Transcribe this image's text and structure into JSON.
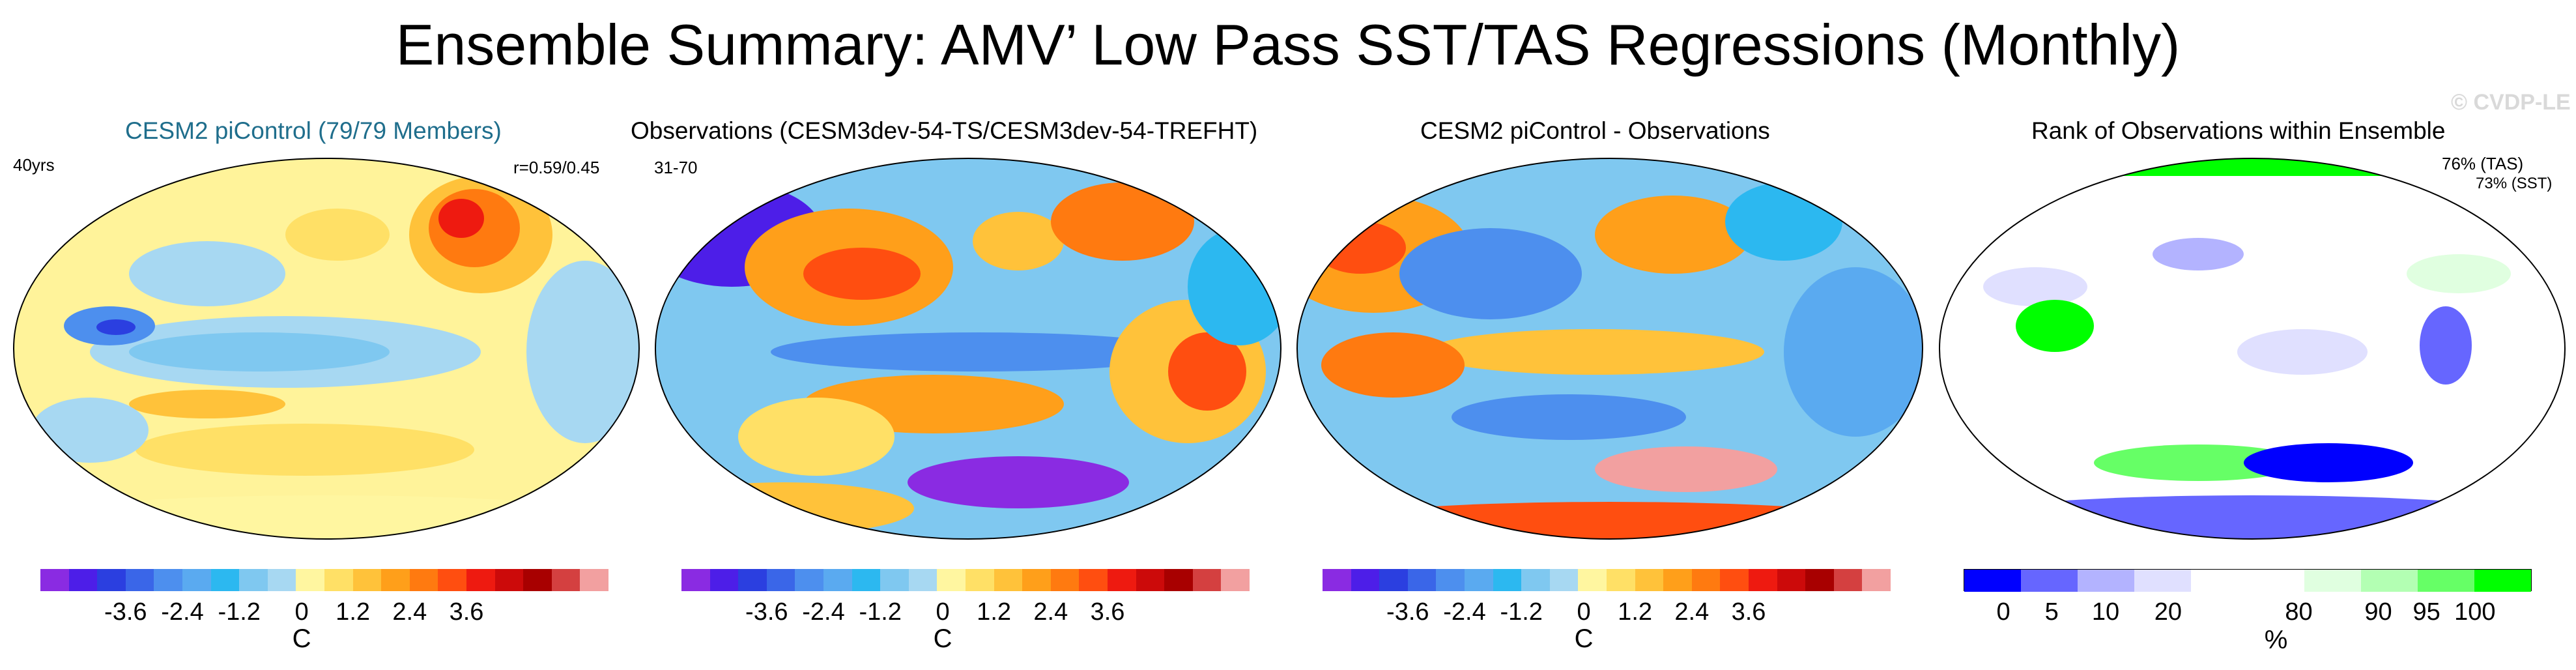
{
  "title": "Ensemble Summary: AMV’ Low Pass SST/TAS Regressions (Monthly)",
  "watermark": "© CVDP-LE",
  "panels": [
    {
      "title": "CESM2 piControl (79/79 Members)",
      "title_color": "#1f6e8c",
      "left_note": "40yrs",
      "right_note": "r=0.59/0.45"
    },
    {
      "title": "Observations (CESM3dev-54-TS/CESM3dev-54-TREFHT)",
      "title_color": "#000000",
      "left_note": "31-70"
    },
    {
      "title": "CESM2 piControl - Observations",
      "title_color": "#000000"
    },
    {
      "title": "Rank of Observations within Ensemble",
      "title_color": "#000000",
      "right_note_1": "76% (TAS)",
      "right_note_2": "73% (SST)"
    }
  ],
  "diverging_colorbar": {
    "colors": [
      "#8a2be2",
      "#4d1ee8",
      "#2b3fe0",
      "#3a66e8",
      "#4d8fee",
      "#5aaaf0",
      "#2cb8f0",
      "#7fc8f0",
      "#a7d8f2",
      "#fff6a0",
      "#ffe066",
      "#ffc23a",
      "#ff9f1a",
      "#ff7a10",
      "#ff4e10",
      "#ee1a10",
      "#cc0a0a",
      "#a80000",
      "#d44040",
      "#f2a0a0"
    ],
    "ticks": [
      "-3.6",
      "-2.4",
      "-1.2",
      "0",
      "1.2",
      "2.4",
      "3.6"
    ],
    "unit": "C"
  },
  "rank_colorbar": {
    "colors": [
      "#0000ff",
      "#6666ff",
      "#b3b3ff",
      "#e0e0ff",
      "#ffffff",
      "#ffffff",
      "#e0ffe0",
      "#b3ffb3",
      "#66ff66",
      "#00ff00"
    ],
    "ticks": [
      "0",
      "5",
      "10",
      "20",
      "80",
      "90",
      "95",
      "100"
    ],
    "unit": "%"
  },
  "legend_layout": "below each panel"
}
